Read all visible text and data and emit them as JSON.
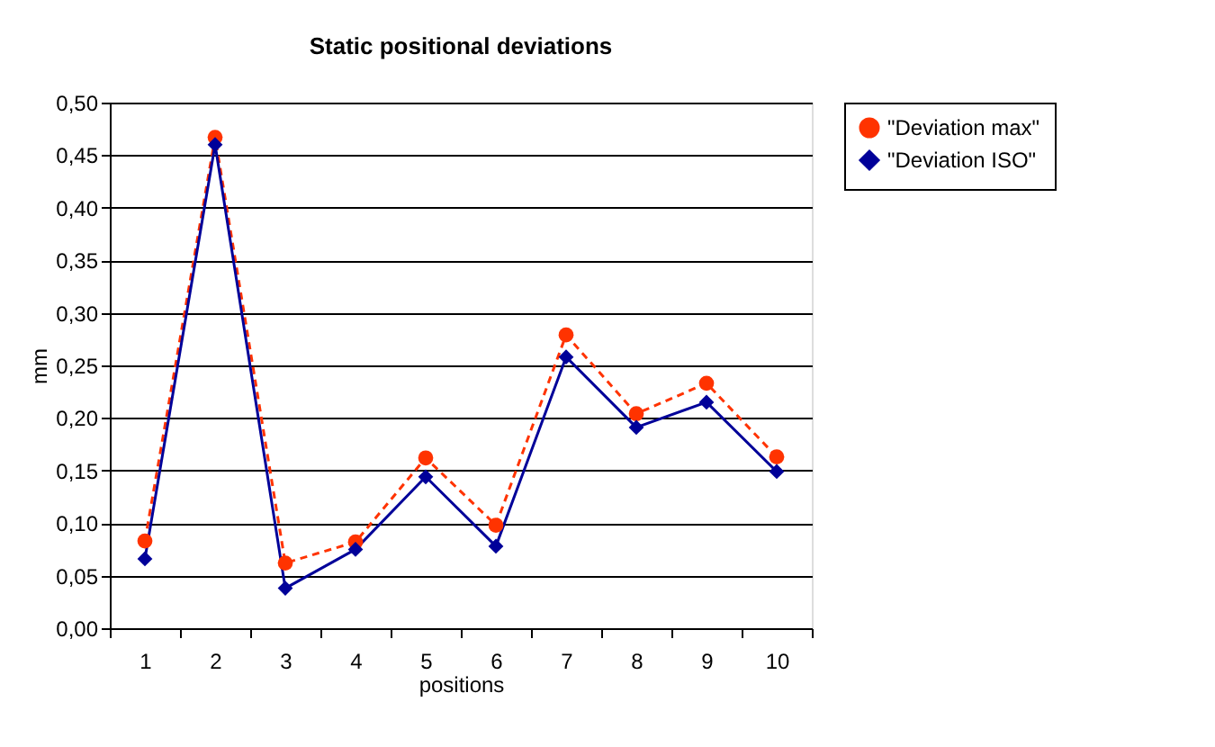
{
  "chart_data": {
    "type": "line",
    "title": "Static positional deviations",
    "xlabel": "positions",
    "ylabel": "mm",
    "categories": [
      "1",
      "2",
      "3",
      "4",
      "5",
      "6",
      "7",
      "8",
      "9",
      "10"
    ],
    "series": [
      {
        "name": "\"Deviation max\"",
        "color": "#ff3300",
        "marker": "circle",
        "line_style": "dashed",
        "values": [
          0.083,
          0.467,
          0.062,
          0.082,
          0.162,
          0.098,
          0.279,
          0.204,
          0.233,
          0.163
        ]
      },
      {
        "name": "\"Deviation ISO\"",
        "color": "#000099",
        "marker": "diamond",
        "line_style": "solid",
        "values": [
          0.066,
          0.46,
          0.038,
          0.075,
          0.144,
          0.078,
          0.258,
          0.191,
          0.215,
          0.149
        ]
      }
    ],
    "ylim": [
      0,
      0.5
    ],
    "yticks": [
      {
        "value": 0,
        "label": "0,00"
      },
      {
        "value": 0.05,
        "label": "0,05"
      },
      {
        "value": 0.1,
        "label": "0,10"
      },
      {
        "value": 0.15,
        "label": "0,15"
      },
      {
        "value": 0.2,
        "label": "0,20"
      },
      {
        "value": 0.25,
        "label": "0,25"
      },
      {
        "value": 0.3,
        "label": "0,30"
      },
      {
        "value": 0.35,
        "label": "0,35"
      },
      {
        "value": 0.4,
        "label": "0,40"
      },
      {
        "value": 0.45,
        "label": "0,45"
      },
      {
        "value": 0.5,
        "label": "0,50"
      }
    ],
    "grid": "y",
    "legend": "right"
  }
}
